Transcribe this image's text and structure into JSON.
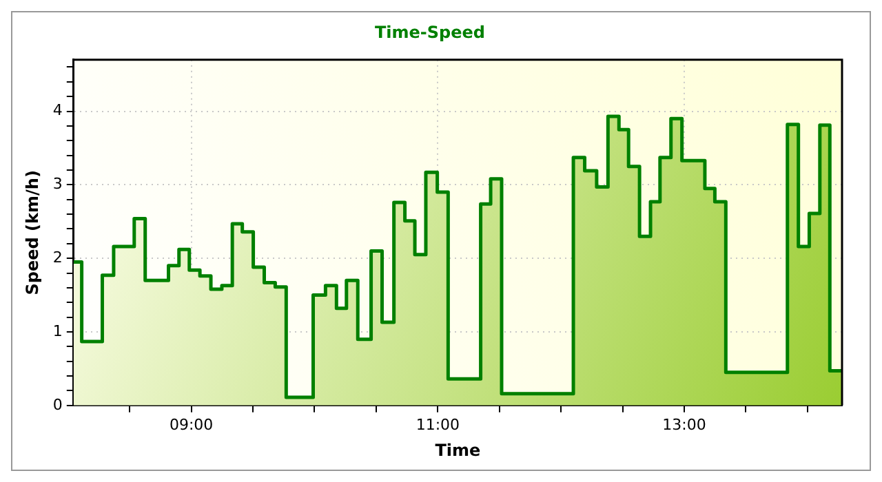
{
  "chart_data": {
    "type": "area",
    "title": "Time-Speed",
    "xlabel": "Time",
    "ylabel": "Speed (km/h)",
    "series": [
      {
        "color": "#008000",
        "x": [
          8.045,
          8.111,
          8.111,
          8.278,
          8.278,
          8.37,
          8.37,
          8.537,
          8.537,
          8.626,
          8.626,
          8.815,
          8.815,
          8.9,
          8.9,
          8.984,
          8.984,
          9.07,
          9.07,
          9.159,
          9.159,
          9.248,
          9.248,
          9.333,
          9.333,
          9.414,
          9.414,
          9.503,
          9.503,
          9.592,
          9.592,
          9.681,
          9.681,
          9.77,
          9.77,
          9.989,
          9.989,
          10.089,
          10.089,
          10.178,
          10.178,
          10.259,
          10.259,
          10.351,
          10.351,
          10.459,
          10.459,
          10.548,
          10.548,
          10.644,
          10.644,
          10.733,
          10.733,
          10.814,
          10.814,
          10.903,
          10.903,
          10.996,
          10.996,
          11.084,
          11.084,
          11.348,
          11.348,
          11.429,
          11.429,
          11.518,
          11.518,
          12.1,
          12.1,
          12.192,
          12.192,
          12.289,
          12.289,
          12.381,
          12.381,
          12.47,
          12.47,
          12.548,
          12.548,
          12.637,
          12.637,
          12.726,
          12.726,
          12.803,
          12.803,
          12.892,
          12.892,
          12.981,
          12.981,
          13.167,
          13.167,
          13.248,
          13.248,
          13.337,
          13.337,
          13.837,
          13.837,
          13.926,
          13.926,
          14.014,
          14.014,
          14.1,
          14.1,
          14.181,
          14.181,
          14.28
        ],
        "values": [
          1.95,
          1.95,
          0.87,
          0.87,
          1.77,
          1.77,
          2.16,
          2.16,
          2.54,
          2.54,
          1.7,
          1.7,
          1.9,
          1.9,
          2.12,
          2.12,
          1.84,
          1.84,
          1.76,
          1.76,
          1.58,
          1.58,
          1.63,
          1.63,
          2.47,
          2.47,
          2.36,
          2.36,
          1.88,
          1.88,
          1.67,
          1.67,
          1.61,
          1.61,
          0.11,
          0.11,
          1.5,
          1.5,
          1.63,
          1.63,
          1.32,
          1.32,
          1.7,
          1.7,
          0.9,
          0.9,
          2.1,
          2.1,
          1.13,
          1.13,
          2.76,
          2.76,
          2.51,
          2.51,
          2.05,
          2.05,
          3.17,
          3.17,
          2.9,
          2.9,
          0.36,
          0.36,
          2.74,
          2.74,
          3.08,
          3.08,
          0.16,
          0.16,
          3.37,
          3.37,
          3.19,
          3.19,
          2.97,
          2.97,
          3.93,
          3.93,
          3.75,
          3.75,
          3.25,
          3.25,
          2.3,
          2.3,
          2.77,
          2.77,
          3.37,
          3.37,
          3.9,
          3.9,
          3.33,
          3.33,
          2.95,
          2.95,
          2.77,
          2.77,
          0.45,
          0.45,
          3.82,
          3.82,
          2.16,
          2.16,
          2.61,
          2.61,
          3.81,
          3.81,
          0.47,
          0.47
        ]
      }
    ],
    "xlim": [
      8.045,
      14.28
    ],
    "xticks": [
      {
        "value": 8.5,
        "label": null
      },
      {
        "value": 9,
        "label": "09:00"
      },
      {
        "value": 9.5,
        "label": null
      },
      {
        "value": 10,
        "label": null
      },
      {
        "value": 10.5,
        "label": null
      },
      {
        "value": 11,
        "label": "11:00"
      },
      {
        "value": 11.5,
        "label": null
      },
      {
        "value": 12,
        "label": null
      },
      {
        "value": 12.5,
        "label": null
      },
      {
        "value": 13,
        "label": "13:00"
      },
      {
        "value": 13.5,
        "label": null
      },
      {
        "value": 14,
        "label": null
      }
    ],
    "ylim": [
      0,
      4.7
    ],
    "yticks": [
      0,
      {
        "value": 0.2,
        "label": null
      },
      {
        "value": 0.4,
        "label": null
      },
      {
        "value": 0.6,
        "label": null
      },
      {
        "value": 0.8,
        "label": null
      },
      1,
      {
        "value": 1.2,
        "label": null
      },
      {
        "value": 1.4,
        "label": null
      },
      {
        "value": 1.6,
        "label": null
      },
      {
        "value": 1.8,
        "label": null
      },
      2,
      {
        "value": 2.2,
        "label": null
      },
      {
        "value": 2.4,
        "label": null
      },
      {
        "value": 2.6,
        "label": null
      },
      {
        "value": 2.8,
        "label": null
      },
      3,
      {
        "value": 3.2,
        "label": null
      },
      {
        "value": 3.4,
        "label": null
      },
      {
        "value": 3.6,
        "label": null
      },
      {
        "value": 3.8,
        "label": null
      },
      4,
      {
        "value": 4.2,
        "label": null
      },
      {
        "value": 4.4,
        "label": null
      },
      {
        "value": 4.6,
        "label": null
      }
    ],
    "grid": true,
    "legend": false,
    "marker": "none",
    "line_style": "solid"
  }
}
